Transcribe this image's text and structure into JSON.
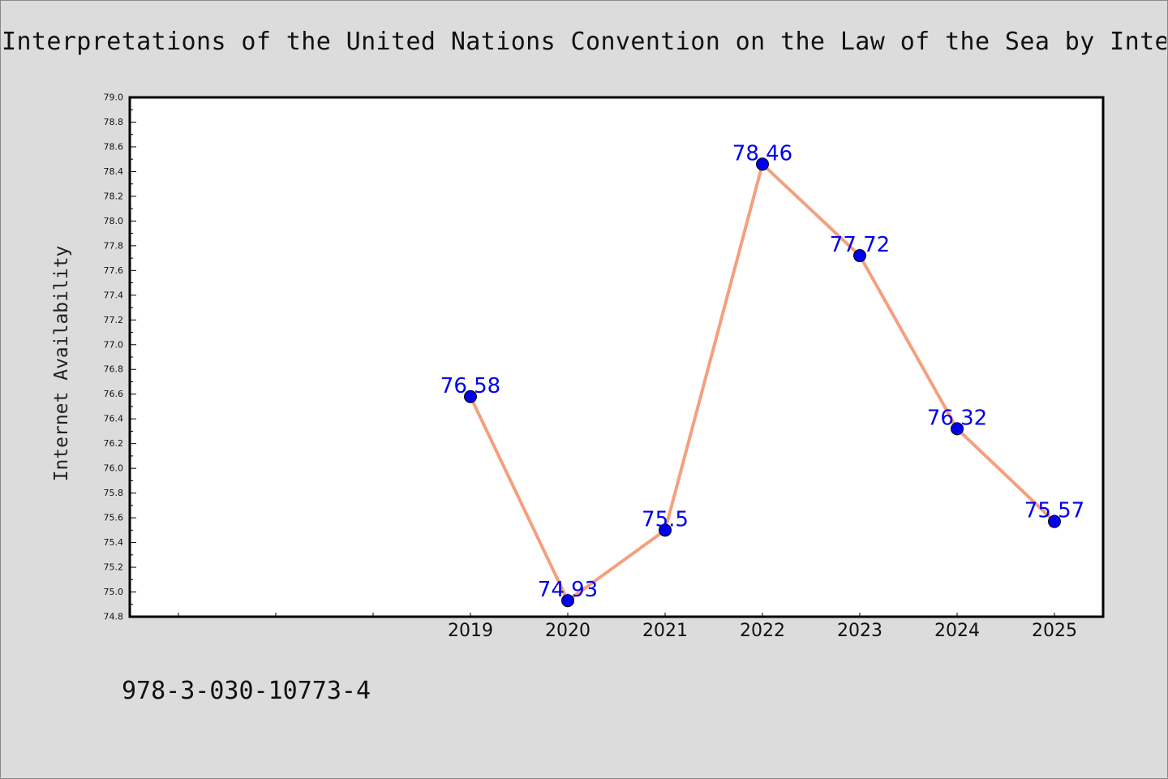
{
  "title": "Interpretations of the United Nations Convention on the Law of the Sea by International Courts",
  "footer_text": "978-3-030-10773-4",
  "chart_data": {
    "type": "line",
    "title": "Interpretations of the United Nations Convention on the Law of the Sea by International Courts",
    "xlabel": "",
    "ylabel": "Internet Availability",
    "categories": [
      "",
      "",
      "",
      "2019",
      "2020",
      "2021",
      "2022",
      "2023",
      "2024",
      "2025"
    ],
    "values": [
      null,
      null,
      null,
      76.58,
      74.93,
      75.5,
      78.46,
      77.72,
      76.32,
      75.57
    ],
    "data_labels": [
      "",
      "",
      "",
      "76.58",
      "74.93",
      "75.5",
      "78.46",
      "77.72",
      "76.32",
      "75.57"
    ],
    "ylim": [
      74.8,
      79.0
    ],
    "yticks": [
      "74.8",
      "75.0",
      "75.2",
      "75.4",
      "75.6",
      "75.8",
      "76.0",
      "76.2",
      "76.4",
      "76.6",
      "76.8",
      "77.0",
      "77.2",
      "77.4",
      "77.6",
      "77.8",
      "78.0",
      "78.2",
      "78.4",
      "78.6",
      "78.8",
      "79.0"
    ],
    "grid": false,
    "line_color": "#f4a07e",
    "marker_color": "#0000ee",
    "label_color": "#0000ee"
  }
}
